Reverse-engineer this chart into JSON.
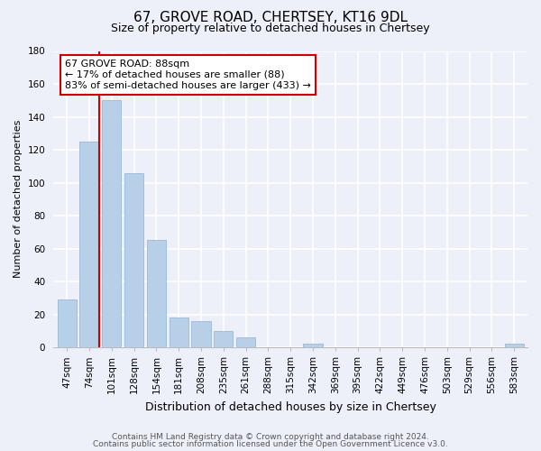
{
  "title": "67, GROVE ROAD, CHERTSEY, KT16 9DL",
  "subtitle": "Size of property relative to detached houses in Chertsey",
  "xlabel": "Distribution of detached houses by size in Chertsey",
  "ylabel": "Number of detached properties",
  "bar_labels": [
    "47sqm",
    "74sqm",
    "101sqm",
    "128sqm",
    "154sqm",
    "181sqm",
    "208sqm",
    "235sqm",
    "261sqm",
    "288sqm",
    "315sqm",
    "342sqm",
    "369sqm",
    "395sqm",
    "422sqm",
    "449sqm",
    "476sqm",
    "503sqm",
    "529sqm",
    "556sqm",
    "583sqm"
  ],
  "bar_values": [
    29,
    125,
    150,
    106,
    65,
    18,
    16,
    10,
    6,
    0,
    0,
    2,
    0,
    0,
    0,
    0,
    0,
    0,
    0,
    0,
    2
  ],
  "bar_color": "#b8cfe8",
  "bar_edge_color": "#9ab8d8",
  "vline_color": "#cc0000",
  "annotation_title": "67 GROVE ROAD: 88sqm",
  "annotation_line1": "← 17% of detached houses are smaller (88)",
  "annotation_line2": "83% of semi-detached houses are larger (433) →",
  "annotation_box_facecolor": "#ffffff",
  "annotation_box_edgecolor": "#cc0000",
  "ylim": [
    0,
    180
  ],
  "yticks": [
    0,
    20,
    40,
    60,
    80,
    100,
    120,
    140,
    160,
    180
  ],
  "footer1": "Contains HM Land Registry data © Crown copyright and database right 2024.",
  "footer2": "Contains public sector information licensed under the Open Government Licence v3.0.",
  "bg_color": "#edf0f9",
  "grid_color": "#ffffff",
  "title_fontsize": 11,
  "subtitle_fontsize": 9,
  "ylabel_fontsize": 8,
  "xlabel_fontsize": 9,
  "tick_fontsize": 7.5,
  "annotation_fontsize": 8,
  "footer_fontsize": 6.5
}
